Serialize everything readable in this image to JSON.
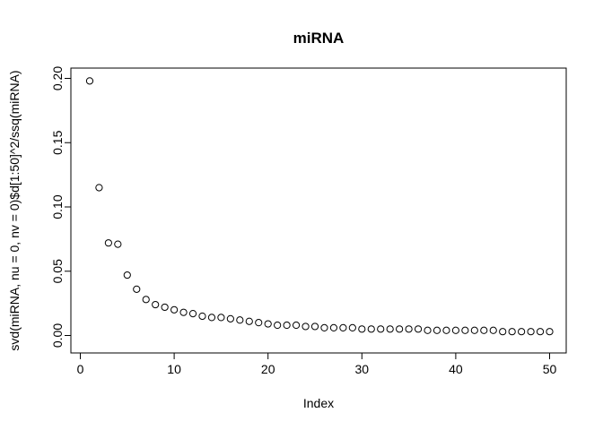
{
  "chart_data": {
    "type": "scatter",
    "title": "miRNA",
    "xlabel": "Index",
    "ylabel": "svd(miRNA, nu = 0, nv = 0)$d[1:50]^2/ssq(miRNA)",
    "xlim": [
      0,
      51
    ],
    "ylim": [
      0,
      0.2
    ],
    "xticks": [
      0,
      10,
      20,
      30,
      40,
      50
    ],
    "xtick_labels": [
      "0",
      "10",
      "20",
      "30",
      "40",
      "50"
    ],
    "yticks": [
      0.0,
      0.05,
      0.1,
      0.15,
      0.2
    ],
    "ytick_labels": [
      "0.00",
      "0.05",
      "0.10",
      "0.15",
      "0.20"
    ],
    "grid": false,
    "marker": "open-circle",
    "x": [
      1,
      2,
      3,
      4,
      5,
      6,
      7,
      8,
      9,
      10,
      11,
      12,
      13,
      14,
      15,
      16,
      17,
      18,
      19,
      20,
      21,
      22,
      23,
      24,
      25,
      26,
      27,
      28,
      29,
      30,
      31,
      32,
      33,
      34,
      35,
      36,
      37,
      38,
      39,
      40,
      41,
      42,
      43,
      44,
      45,
      46,
      47,
      48,
      49,
      50
    ],
    "y": [
      0.198,
      0.115,
      0.072,
      0.071,
      0.047,
      0.036,
      0.028,
      0.024,
      0.022,
      0.02,
      0.018,
      0.017,
      0.015,
      0.014,
      0.014,
      0.013,
      0.012,
      0.011,
      0.01,
      0.009,
      0.008,
      0.008,
      0.008,
      0.007,
      0.007,
      0.006,
      0.006,
      0.006,
      0.006,
      0.005,
      0.005,
      0.005,
      0.005,
      0.005,
      0.005,
      0.005,
      0.004,
      0.004,
      0.004,
      0.004,
      0.004,
      0.004,
      0.004,
      0.004,
      0.003,
      0.003,
      0.003,
      0.003,
      0.003,
      0.003
    ]
  }
}
